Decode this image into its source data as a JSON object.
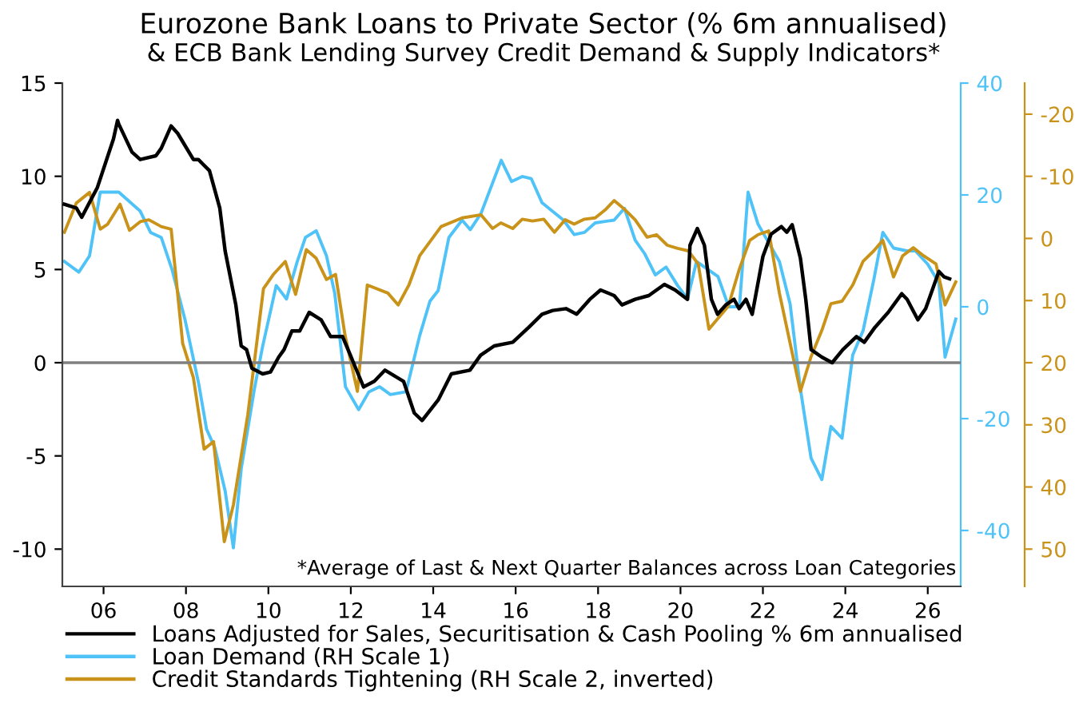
{
  "chart_data": {
    "type": "line",
    "title": "Eurozone Bank Loans to Private Sector (% 6m annualised)",
    "subtitle": "& ECB Bank Lending Survey Credit Demand & Supply Indicators*",
    "annotations": [
      "*Average of Last & Next Quarter Balances across Loan Categories"
    ],
    "xlim": [
      2005,
      2026.8
    ],
    "xticks": [
      {
        "value": 2006,
        "label": "06"
      },
      {
        "value": 2008,
        "label": "08"
      },
      {
        "value": 2010,
        "label": "10"
      },
      {
        "value": 2012,
        "label": "12"
      },
      {
        "value": 2014,
        "label": "14"
      },
      {
        "value": 2016,
        "label": "16"
      },
      {
        "value": 2018,
        "label": "18"
      },
      {
        "value": 2020,
        "label": "20"
      },
      {
        "value": 2022,
        "label": "22"
      },
      {
        "value": 2024,
        "label": "24"
      },
      {
        "value": 2026,
        "label": "26"
      }
    ],
    "ylim": [
      -12,
      15
    ],
    "yticks": [
      -10,
      -5,
      0,
      5,
      10,
      15
    ],
    "y2lim": [
      -50,
      40
    ],
    "y2ticks": [
      -40,
      -20,
      0,
      20,
      40
    ],
    "y3lim": [
      56,
      -25
    ],
    "y3ticks": [
      -20,
      -10,
      0,
      10,
      20,
      30,
      40,
      50
    ],
    "ref_lines": [
      {
        "axis": "y",
        "value": 0,
        "color": "#808080"
      }
    ],
    "grid": false,
    "legend": "bottom",
    "marker": "none",
    "line_style": "solid",
    "series": [
      {
        "name": "Loans Adjusted for Sales, Securitisation & Cash Pooling % 6m annualised",
        "color": "#000000",
        "x": [
          2005.05,
          2005.34,
          2005.47,
          2005.85,
          2006.24,
          2006.34,
          2006.37,
          2006.69,
          2006.89,
          2007.27,
          2007.4,
          2007.64,
          2007.8,
          2008.18,
          2008.3,
          2008.57,
          2008.82,
          2008.95,
          2009.21,
          2009.34,
          2009.47,
          2009.6,
          2009.86,
          2010.05,
          2010.25,
          2010.38,
          2010.57,
          2010.76,
          2010.99,
          2011.28,
          2011.51,
          2011.8,
          2011.99,
          2012.12,
          2012.31,
          2012.57,
          2012.83,
          2013.28,
          2013.54,
          2013.73,
          2014.12,
          2014.44,
          2014.89,
          2015.15,
          2015.48,
          2015.93,
          2016.32,
          2016.64,
          2016.9,
          2017.22,
          2017.48,
          2017.8,
          2018.06,
          2018.39,
          2018.58,
          2018.9,
          2019.23,
          2019.61,
          2019.87,
          2020.17,
          2020.23,
          2020.41,
          2020.58,
          2020.75,
          2020.9,
          2021.1,
          2021.3,
          2021.42,
          2021.59,
          2021.74,
          2022.0,
          2022.2,
          2022.45,
          2022.58,
          2022.71,
          2022.91,
          2023.04,
          2023.17,
          2023.43,
          2023.68,
          2023.94,
          2024.27,
          2024.46,
          2024.72,
          2025.04,
          2025.37,
          2025.5,
          2025.76,
          2025.95,
          2026.27,
          2026.4,
          2026.53
        ],
        "values": [
          8.5,
          8.3,
          7.8,
          9.4,
          12.0,
          13.0,
          12.8,
          11.3,
          10.9,
          11.1,
          11.5,
          12.7,
          12.3,
          10.9,
          10.9,
          10.3,
          8.3,
          6.0,
          3.1,
          0.9,
          0.7,
          -0.3,
          -0.6,
          -0.5,
          0.3,
          0.7,
          1.7,
          1.7,
          2.7,
          2.3,
          1.4,
          1.4,
          0.4,
          -0.3,
          -1.3,
          -1.0,
          -0.4,
          -1.0,
          -2.7,
          -3.1,
          -2.0,
          -0.6,
          -0.4,
          0.4,
          0.9,
          1.1,
          1.9,
          2.6,
          2.8,
          2.9,
          2.6,
          3.4,
          3.9,
          3.6,
          3.1,
          3.4,
          3.6,
          4.2,
          3.9,
          3.4,
          6.3,
          7.2,
          6.3,
          3.4,
          2.6,
          3.1,
          3.4,
          2.9,
          3.4,
          2.6,
          5.7,
          6.9,
          7.3,
          7.0,
          7.4,
          5.6,
          3.4,
          0.7,
          0.3,
          0.0,
          0.7,
          1.4,
          1.1,
          1.9,
          2.7,
          3.7,
          3.4,
          2.3,
          2.9,
          4.9,
          4.6,
          4.5
        ]
      },
      {
        "name": "Loan Demand (RH Scale 1)",
        "color": "#4fc3f7",
        "axis": "y2",
        "x": [
          2005.05,
          2005.4,
          2005.66,
          2005.92,
          2006.37,
          2006.89,
          2007.14,
          2007.4,
          2007.66,
          2007.98,
          2008.31,
          2008.5,
          2008.7,
          2008.95,
          2009.15,
          2009.34,
          2009.66,
          2009.86,
          2010.19,
          2010.44,
          2010.7,
          2010.9,
          2011.16,
          2011.41,
          2011.61,
          2011.87,
          2012.19,
          2012.44,
          2012.7,
          2012.96,
          2013.34,
          2013.67,
          2013.92,
          2014.12,
          2014.38,
          2014.7,
          2014.9,
          2015.16,
          2015.65,
          2015.9,
          2016.16,
          2016.38,
          2016.64,
          2017.16,
          2017.42,
          2017.67,
          2017.93,
          2018.39,
          2018.64,
          2018.9,
          2019.13,
          2019.39,
          2019.65,
          2019.93,
          2020.17,
          2020.39,
          2020.91,
          2021.17,
          2021.43,
          2021.64,
          2021.88,
          2022.4,
          2022.66,
          2022.91,
          2023.17,
          2023.43,
          2023.65,
          2023.92,
          2024.18,
          2024.43,
          2024.69,
          2024.91,
          2025.17,
          2025.49,
          2025.7,
          2026.0,
          2026.27,
          2026.42,
          2026.68
        ],
        "values": [
          8.1,
          6.2,
          9.1,
          20.5,
          20.5,
          17.1,
          13.3,
          12.4,
          6.7,
          -2.4,
          -13.8,
          -21.9,
          -25.2,
          -32.9,
          -43.1,
          -29.0,
          -14.7,
          -7.1,
          3.8,
          1.4,
          8.1,
          12.4,
          13.6,
          9.1,
          2.4,
          -14.3,
          -18.4,
          -15.2,
          -14.3,
          -15.7,
          -15.2,
          -5.2,
          1.0,
          2.9,
          12.4,
          15.5,
          13.8,
          16.7,
          26.2,
          22.4,
          23.3,
          22.9,
          18.6,
          15.5,
          12.9,
          13.3,
          15.0,
          15.5,
          17.6,
          11.9,
          9.5,
          5.7,
          7.1,
          3.8,
          1.4,
          8.1,
          5.4,
          0.0,
          0.0,
          20.5,
          14.8,
          8.1,
          0.5,
          -14.7,
          -27.1,
          -30.9,
          -21.4,
          -23.5,
          -8.6,
          -4.3,
          4.8,
          13.3,
          10.5,
          10.0,
          10.0,
          7.6,
          4.3,
          -9.0,
          -2.2
        ]
      },
      {
        "name": "Credit Standards Tightening (RH Scale 2, inverted)",
        "color": "#c9931a",
        "axis": "y3",
        "x": [
          2005.05,
          2005.34,
          2005.66,
          2005.92,
          2006.1,
          2006.4,
          2006.63,
          2006.89,
          2007.1,
          2007.4,
          2007.64,
          2007.92,
          2008.18,
          2008.44,
          2008.67,
          2008.93,
          2009.15,
          2009.5,
          2009.88,
          2010.12,
          2010.41,
          2010.66,
          2010.92,
          2011.16,
          2011.41,
          2011.63,
          2011.86,
          2012.16,
          2012.4,
          2012.9,
          2013.15,
          2013.41,
          2013.67,
          2014.19,
          2014.7,
          2015.16,
          2015.44,
          2015.64,
          2015.93,
          2016.16,
          2016.41,
          2016.68,
          2016.94,
          2017.2,
          2017.42,
          2017.67,
          2017.93,
          2018.19,
          2018.39,
          2018.64,
          2018.9,
          2019.19,
          2019.42,
          2019.68,
          2019.93,
          2020.19,
          2020.43,
          2020.69,
          2021.16,
          2021.43,
          2021.68,
          2021.88,
          2022.14,
          2022.4,
          2022.91,
          2023.17,
          2023.43,
          2023.65,
          2023.92,
          2024.18,
          2024.43,
          2024.69,
          2024.91,
          2025.17,
          2025.39,
          2025.65,
          2025.9,
          2026.2,
          2026.42,
          2026.68
        ],
        "values": [
          -1.0,
          -5.7,
          -7.4,
          -1.5,
          -2.3,
          -5.5,
          -1.3,
          -2.7,
          -3.0,
          -1.9,
          -1.5,
          16.9,
          22.4,
          33.9,
          32.7,
          48.8,
          42.9,
          28.4,
          8.1,
          5.8,
          3.7,
          9.0,
          1.8,
          3.2,
          6.6,
          5.8,
          15.6,
          24.6,
          7.5,
          8.8,
          10.7,
          7.5,
          2.8,
          -1.9,
          -3.3,
          -3.8,
          -1.6,
          -2.5,
          -1.6,
          -3.1,
          -2.8,
          -3.1,
          -1.0,
          -3.0,
          -2.3,
          -3.1,
          -3.3,
          -4.7,
          -6.1,
          -4.7,
          -3.0,
          -0.2,
          -0.6,
          1.1,
          1.6,
          2.0,
          4.1,
          14.6,
          10.9,
          4.9,
          0.3,
          -0.6,
          -1.2,
          8.8,
          24.6,
          19.0,
          14.8,
          10.5,
          10.1,
          7.5,
          3.7,
          2.0,
          0.3,
          6.2,
          2.8,
          1.5,
          2.8,
          4.1,
          10.7,
          7.0
        ]
      }
    ]
  }
}
